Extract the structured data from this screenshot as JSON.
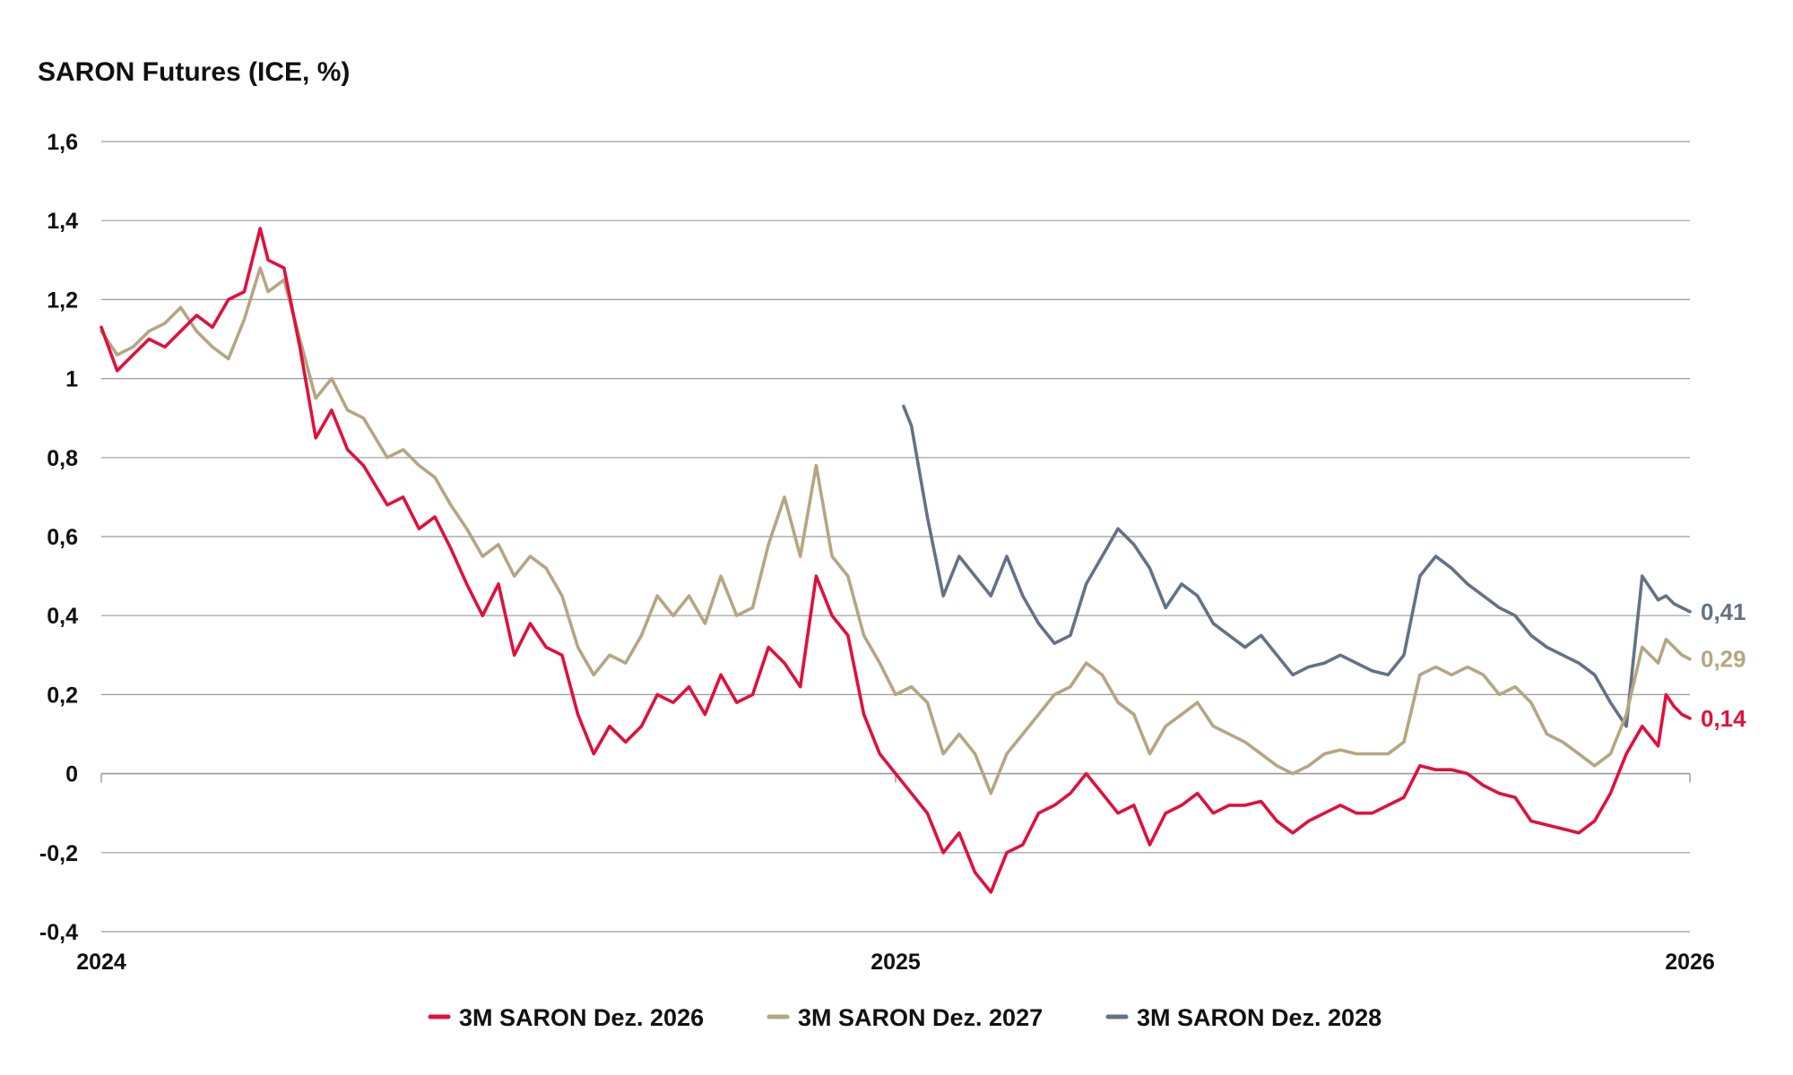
{
  "chart_data": {
    "type": "line",
    "title": "SARON Futures (ICE, %)",
    "xlabel": "",
    "ylabel": "",
    "ylim": [
      -0.4,
      1.6
    ],
    "yticks": [
      -0.4,
      -0.2,
      0,
      0.2,
      0.4,
      0.6,
      0.8,
      1,
      1.2,
      1.4,
      1.6
    ],
    "ytick_labels": [
      "-0,4",
      "-0,2",
      "0",
      "0,2",
      "0,4",
      "0,6",
      "0,8",
      "1",
      "1,2",
      "1,4",
      "1,6"
    ],
    "xlim": [
      2024.0,
      2026.0
    ],
    "xticks": [
      2024,
      2025,
      2026
    ],
    "xtick_labels": [
      "2024",
      "2025",
      "2026"
    ],
    "legend_position": "bottom",
    "series": [
      {
        "name": "3M SARON Dez. 2026",
        "color": "#e0103c",
        "end_label": "0,14",
        "x": [
          2024.0,
          2024.02,
          2024.04,
          2024.06,
          2024.08,
          2024.1,
          2024.12,
          2024.14,
          2024.16,
          2024.18,
          2024.2,
          2024.21,
          2024.23,
          2024.25,
          2024.27,
          2024.29,
          2024.31,
          2024.33,
          2024.36,
          2024.38,
          2024.4,
          2024.42,
          2024.44,
          2024.46,
          2024.48,
          2024.5,
          2024.52,
          2024.54,
          2024.56,
          2024.58,
          2024.6,
          2024.62,
          2024.64,
          2024.66,
          2024.68,
          2024.7,
          2024.72,
          2024.74,
          2024.76,
          2024.78,
          2024.8,
          2024.82,
          2024.84,
          2024.86,
          2024.88,
          2024.9,
          2024.92,
          2024.94,
          2024.96,
          2024.98,
          2025.0,
          2025.02,
          2025.04,
          2025.06,
          2025.08,
          2025.1,
          2025.12,
          2025.14,
          2025.16,
          2025.18,
          2025.2,
          2025.22,
          2025.24,
          2025.26,
          2025.28,
          2025.3,
          2025.32,
          2025.34,
          2025.36,
          2025.38,
          2025.4,
          2025.42,
          2025.44,
          2025.46,
          2025.48,
          2025.5,
          2025.52,
          2025.54,
          2025.56,
          2025.58,
          2025.6,
          2025.62,
          2025.64,
          2025.66,
          2025.68,
          2025.7,
          2025.72,
          2025.74,
          2025.76,
          2025.78,
          2025.8,
          2025.82,
          2025.84,
          2025.86,
          2025.88,
          2025.9,
          2025.92,
          2025.94,
          2025.96,
          2025.97,
          2025.98,
          2025.99,
          2026.0
        ],
        "y": [
          1.13,
          1.02,
          1.06,
          1.1,
          1.08,
          1.12,
          1.16,
          1.13,
          1.2,
          1.22,
          1.38,
          1.3,
          1.28,
          1.08,
          0.85,
          0.92,
          0.82,
          0.78,
          0.68,
          0.7,
          0.62,
          0.65,
          0.57,
          0.48,
          0.4,
          0.48,
          0.3,
          0.38,
          0.32,
          0.3,
          0.15,
          0.05,
          0.12,
          0.08,
          0.12,
          0.2,
          0.18,
          0.22,
          0.15,
          0.25,
          0.18,
          0.2,
          0.32,
          0.28,
          0.22,
          0.5,
          0.4,
          0.35,
          0.15,
          0.05,
          0.0,
          -0.05,
          -0.1,
          -0.2,
          -0.15,
          -0.25,
          -0.3,
          -0.2,
          -0.18,
          -0.1,
          -0.08,
          -0.05,
          0.0,
          -0.05,
          -0.1,
          -0.08,
          -0.18,
          -0.1,
          -0.08,
          -0.05,
          -0.1,
          -0.08,
          -0.08,
          -0.07,
          -0.12,
          -0.15,
          -0.12,
          -0.1,
          -0.08,
          -0.1,
          -0.1,
          -0.08,
          -0.06,
          0.02,
          0.01,
          0.01,
          0.0,
          -0.03,
          -0.05,
          -0.06,
          -0.12,
          -0.13,
          -0.14,
          -0.15,
          -0.12,
          -0.05,
          0.05,
          0.12,
          0.07,
          0.2,
          0.17,
          0.15,
          0.14
        ]
      },
      {
        "name": "3M SARON Dez. 2027",
        "color": "#b5a683",
        "end_label": "0,29",
        "x": [
          2024.0,
          2024.02,
          2024.04,
          2024.06,
          2024.08,
          2024.1,
          2024.12,
          2024.14,
          2024.16,
          2024.18,
          2024.2,
          2024.21,
          2024.23,
          2024.25,
          2024.27,
          2024.29,
          2024.31,
          2024.33,
          2024.36,
          2024.38,
          2024.4,
          2024.42,
          2024.44,
          2024.46,
          2024.48,
          2024.5,
          2024.52,
          2024.54,
          2024.56,
          2024.58,
          2024.6,
          2024.62,
          2024.64,
          2024.66,
          2024.68,
          2024.7,
          2024.72,
          2024.74,
          2024.76,
          2024.78,
          2024.8,
          2024.82,
          2024.84,
          2024.86,
          2024.88,
          2024.9,
          2024.92,
          2024.94,
          2024.96,
          2024.98,
          2025.0,
          2025.02,
          2025.04,
          2025.06,
          2025.08,
          2025.1,
          2025.12,
          2025.14,
          2025.16,
          2025.18,
          2025.2,
          2025.22,
          2025.24,
          2025.26,
          2025.28,
          2025.3,
          2025.32,
          2025.34,
          2025.36,
          2025.38,
          2025.4,
          2025.42,
          2025.44,
          2025.46,
          2025.48,
          2025.5,
          2025.52,
          2025.54,
          2025.56,
          2025.58,
          2025.6,
          2025.62,
          2025.64,
          2025.66,
          2025.68,
          2025.7,
          2025.72,
          2025.74,
          2025.76,
          2025.78,
          2025.8,
          2025.82,
          2025.84,
          2025.86,
          2025.88,
          2025.9,
          2025.92,
          2025.94,
          2025.96,
          2025.97,
          2025.98,
          2025.99,
          2026.0
        ],
        "y": [
          1.12,
          1.06,
          1.08,
          1.12,
          1.14,
          1.18,
          1.12,
          1.08,
          1.05,
          1.15,
          1.28,
          1.22,
          1.25,
          1.1,
          0.95,
          1.0,
          0.92,
          0.9,
          0.8,
          0.82,
          0.78,
          0.75,
          0.68,
          0.62,
          0.55,
          0.58,
          0.5,
          0.55,
          0.52,
          0.45,
          0.32,
          0.25,
          0.3,
          0.28,
          0.35,
          0.45,
          0.4,
          0.45,
          0.38,
          0.5,
          0.4,
          0.42,
          0.58,
          0.7,
          0.55,
          0.78,
          0.55,
          0.5,
          0.35,
          0.28,
          0.2,
          0.22,
          0.18,
          0.05,
          0.1,
          0.05,
          -0.05,
          0.05,
          0.1,
          0.15,
          0.2,
          0.22,
          0.28,
          0.25,
          0.18,
          0.15,
          0.05,
          0.12,
          0.15,
          0.18,
          0.12,
          0.1,
          0.08,
          0.05,
          0.02,
          0.0,
          0.02,
          0.05,
          0.06,
          0.05,
          0.05,
          0.05,
          0.08,
          0.25,
          0.27,
          0.25,
          0.27,
          0.25,
          0.2,
          0.22,
          0.18,
          0.1,
          0.08,
          0.05,
          0.02,
          0.05,
          0.15,
          0.32,
          0.28,
          0.34,
          0.32,
          0.3,
          0.29
        ]
      },
      {
        "name": "3M SARON Dez. 2028",
        "color": "#647285",
        "end_label": "0,41",
        "x": [
          2025.01,
          2025.02,
          2025.04,
          2025.06,
          2025.08,
          2025.1,
          2025.12,
          2025.14,
          2025.16,
          2025.18,
          2025.2,
          2025.22,
          2025.24,
          2025.26,
          2025.28,
          2025.3,
          2025.32,
          2025.34,
          2025.36,
          2025.38,
          2025.4,
          2025.42,
          2025.44,
          2025.46,
          2025.48,
          2025.5,
          2025.52,
          2025.54,
          2025.56,
          2025.58,
          2025.6,
          2025.62,
          2025.64,
          2025.66,
          2025.68,
          2025.7,
          2025.72,
          2025.74,
          2025.76,
          2025.78,
          2025.8,
          2025.82,
          2025.84,
          2025.86,
          2025.88,
          2025.9,
          2025.92,
          2025.94,
          2025.96,
          2025.97,
          2025.98,
          2025.99,
          2026.0
        ],
        "y": [
          0.93,
          0.88,
          0.65,
          0.45,
          0.55,
          0.5,
          0.45,
          0.55,
          0.45,
          0.38,
          0.33,
          0.35,
          0.48,
          0.55,
          0.62,
          0.58,
          0.52,
          0.42,
          0.48,
          0.45,
          0.38,
          0.35,
          0.32,
          0.35,
          0.3,
          0.25,
          0.27,
          0.28,
          0.3,
          0.28,
          0.26,
          0.25,
          0.3,
          0.5,
          0.55,
          0.52,
          0.48,
          0.45,
          0.42,
          0.4,
          0.35,
          0.32,
          0.3,
          0.28,
          0.25,
          0.18,
          0.12,
          0.5,
          0.44,
          0.45,
          0.43,
          0.42,
          0.41
        ]
      }
    ]
  }
}
